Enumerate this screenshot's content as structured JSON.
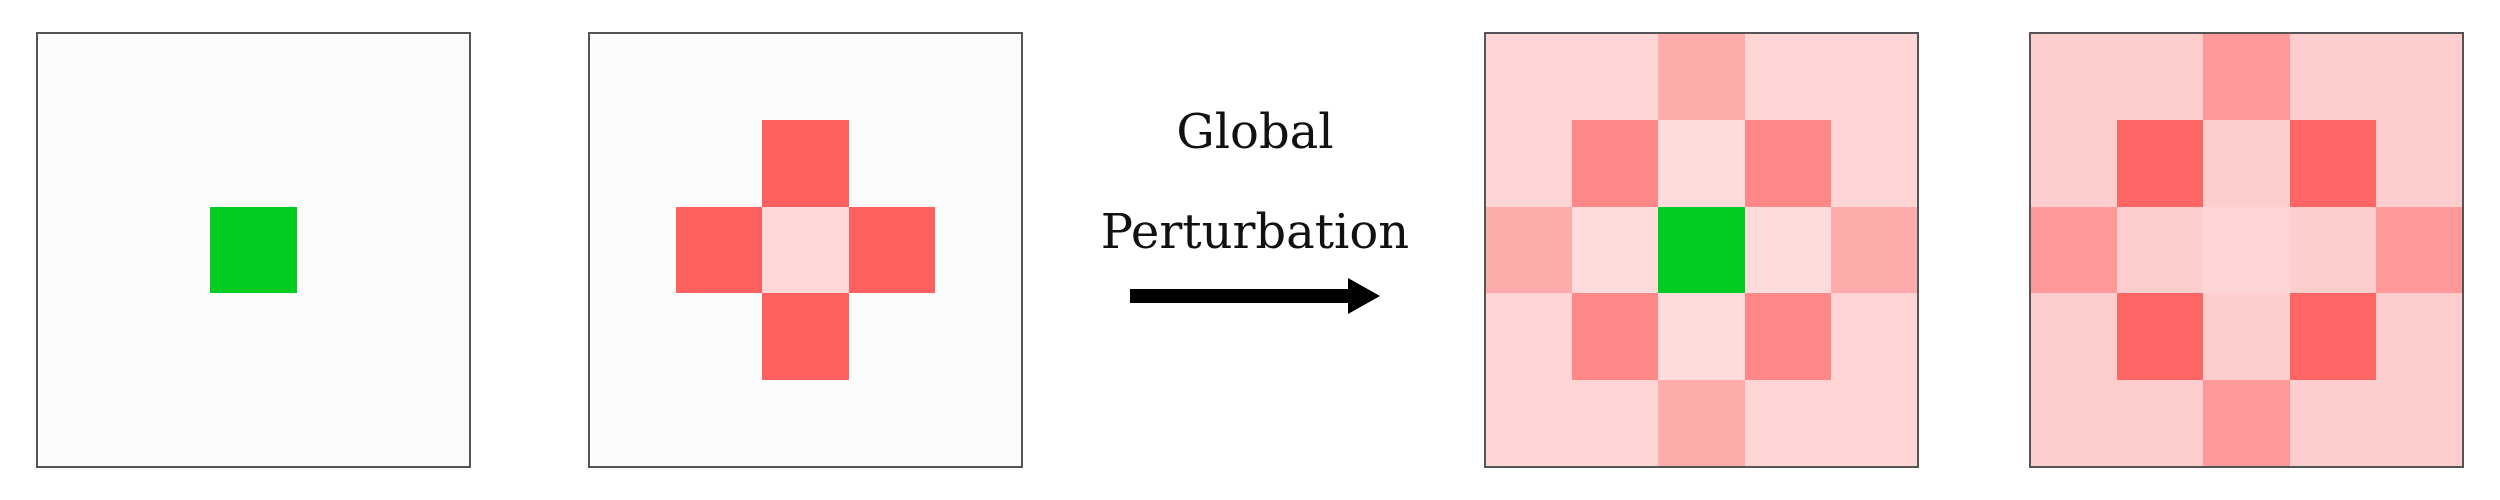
{
  "caption": {
    "line1": "Global",
    "line2": "Perturbation"
  },
  "colors": {
    "background": "#fcfcfc",
    "border": "#555555",
    "arrow": "#000000"
  },
  "panels": [
    {
      "name": "panel-1",
      "cells": [
        [
          "#fcfcfc",
          "#fcfcfc",
          "#fcfcfc",
          "#fcfcfc",
          "#fcfcfc"
        ],
        [
          "#fcfcfc",
          "#fcfcfc",
          "#fcfcfc",
          "#fcfcfc",
          "#fcfcfc"
        ],
        [
          "#fcfcfc",
          "#fcfcfc",
          "#00cc22",
          "#fcfcfc",
          "#fcfcfc"
        ],
        [
          "#fcfcfc",
          "#fcfcfc",
          "#fcfcfc",
          "#fcfcfc",
          "#fcfcfc"
        ],
        [
          "#fcfcfc",
          "#fcfcfc",
          "#fcfcfc",
          "#fcfcfc",
          "#fcfcfc"
        ]
      ]
    },
    {
      "name": "panel-2",
      "cells": [
        [
          "#fcfcfc",
          "#fcfcfc",
          "#fcfcfc",
          "#fcfcfc",
          "#fcfcfc"
        ],
        [
          "#fcfcfc",
          "#fcfcfc",
          "#fe5f5f",
          "#fcfcfc",
          "#fcfcfc"
        ],
        [
          "#fcfcfc",
          "#fe5f5f",
          "#fed8d8",
          "#fe5f5f",
          "#fcfcfc"
        ],
        [
          "#fcfcfc",
          "#fcfcfc",
          "#fe5f5f",
          "#fcfcfc",
          "#fcfcfc"
        ],
        [
          "#fcfcfc",
          "#fcfcfc",
          "#fcfcfc",
          "#fcfcfc",
          "#fcfcfc"
        ]
      ]
    },
    {
      "name": "panel-3",
      "cells": [
        [
          "#fed4d4",
          "#fed4d4",
          "#feabab",
          "#fed4d4",
          "#fed4d4"
        ],
        [
          "#fed4d4",
          "#fe8787",
          "#fedcdc",
          "#fe8787",
          "#fed4d4"
        ],
        [
          "#feabab",
          "#fedcdc",
          "#00cc22",
          "#fedcdc",
          "#feabab"
        ],
        [
          "#fed4d4",
          "#fe8787",
          "#fedcdc",
          "#fe8787",
          "#fed4d4"
        ],
        [
          "#fed4d4",
          "#fed4d4",
          "#feabab",
          "#fed4d4",
          "#fed4d4"
        ]
      ]
    },
    {
      "name": "panel-4",
      "cells": [
        [
          "#fecece",
          "#fecece",
          "#fe9999",
          "#fecece",
          "#fecece"
        ],
        [
          "#fecece",
          "#fe6565",
          "#fecece",
          "#fe6565",
          "#fecece"
        ],
        [
          "#fe9999",
          "#fecece",
          "#fed4d4",
          "#fecece",
          "#fe9999"
        ],
        [
          "#fecece",
          "#fe6565",
          "#fecece",
          "#fe6565",
          "#fecece"
        ],
        [
          "#fecece",
          "#fecece",
          "#fe9999",
          "#fecece",
          "#fecece"
        ]
      ]
    }
  ]
}
